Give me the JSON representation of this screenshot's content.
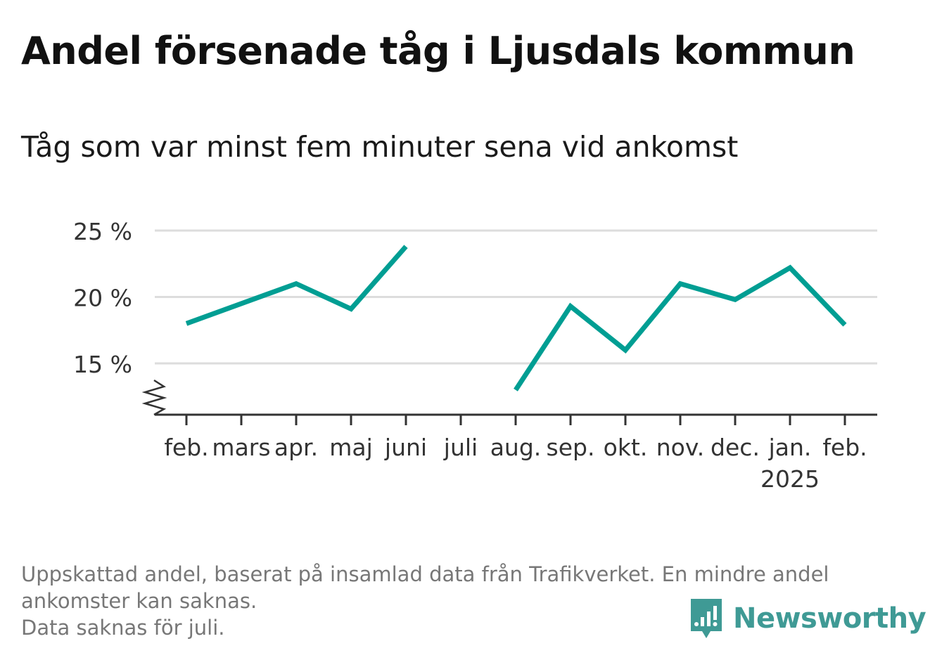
{
  "title": "Andel försenade tåg i Ljusdals kommun",
  "subtitle": "Tåg som var minst fem minuter sena vid ankomst",
  "footer": {
    "line1": "Uppskattad andel, baserat på insamlad data från Trafikverket. En mindre andel",
    "line2": "ankomster kan saknas.",
    "line3": "Data saknas för juli."
  },
  "brand": {
    "name": "Newsworthy",
    "icon": "newsworthy-bar-chart-icon",
    "color": "#3f9a95"
  },
  "chart_data": {
    "type": "line",
    "categories": [
      "feb.",
      "mars",
      "apr.",
      "maj",
      "juni",
      "juli",
      "aug.",
      "sep.",
      "okt.",
      "nov.",
      "dec.",
      "jan.",
      "feb."
    ],
    "year_label": "2025",
    "year_label_index": 11,
    "series": [
      {
        "values": [
          18.0,
          19.5,
          21.0,
          19.1,
          23.8,
          null,
          13.0,
          19.3,
          16.0,
          21.0,
          19.8,
          22.2,
          17.9
        ],
        "color": "#009e93"
      }
    ],
    "yticks": [
      15,
      20,
      25
    ],
    "ytick_labels": [
      "15 %",
      "20 %",
      "25 %"
    ],
    "ylim": [
      11.2,
      26.2
    ],
    "axis_break": true,
    "grid": true,
    "grid_color": "#dddddd",
    "xlabel": "",
    "ylabel": ""
  }
}
